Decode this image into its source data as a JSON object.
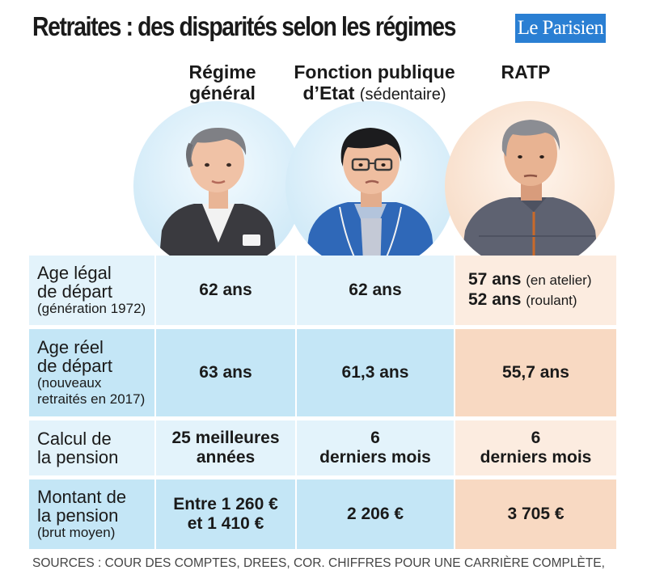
{
  "title": "Retraites : des disparités selon les régimes",
  "logo": "Le Parisien",
  "columns": [
    {
      "line1": "Régime",
      "line2": "général",
      "line2_extra": ""
    },
    {
      "line1": "Fonction publique",
      "line2": "d’Etat",
      "line2_extra": "(sédentaire)"
    },
    {
      "line1": "RATP",
      "line2": "",
      "line2_extra": ""
    }
  ],
  "rows": [
    {
      "label_lines": [
        "Age légal",
        "de départ"
      ],
      "label_sub": [
        "(génération 1972)"
      ],
      "general": {
        "l1": "62 ans"
      },
      "fonction_publique": {
        "l1": "62 ans"
      },
      "ratp": {
        "l1": "57 ans",
        "n1": "(en atelier)",
        "l2": "52 ans",
        "n2": "(roulant)"
      }
    },
    {
      "label_lines": [
        "Age réel",
        "de départ"
      ],
      "label_sub": [
        "(nouveaux",
        "retraités en 2017)"
      ],
      "general": {
        "l1": "63 ans"
      },
      "fonction_publique": {
        "l1": "61,3 ans"
      },
      "ratp": {
        "l1": "55,7 ans"
      }
    },
    {
      "label_lines": [
        "Calcul de",
        "la pension"
      ],
      "label_sub": [],
      "general": {
        "l1": "25 meilleures",
        "l2": "années"
      },
      "fonction_publique": {
        "l1": "6",
        "l2": "derniers mois"
      },
      "ratp": {
        "l1": "6",
        "l2": "derniers mois"
      }
    },
    {
      "label_lines": [
        "Montant de",
        "la pension"
      ],
      "label_sub": [
        "(brut moyen)"
      ],
      "general": {
        "l1": "Entre 1 260 €",
        "l2": "et 1 410 €"
      },
      "fonction_publique": {
        "l1": "2 206 €"
      },
      "ratp": {
        "l1": "3 705 €"
      }
    }
  ],
  "sources": "SOURCES : COUR DES COMPTES, DREES, COR. CHIFFRES POUR UNE CARRIÈRE COMPLÈTE,",
  "colors": {
    "blue_light": "#e3f3fb",
    "blue_dark": "#c4e6f6",
    "peach_light": "#fcece0",
    "peach_dark": "#f8d9c2",
    "logo_blue": "#2a7fd3"
  },
  "illustrations": [
    "woman-portrait",
    "man-glasses-portrait",
    "man-gray-hair-portrait"
  ]
}
